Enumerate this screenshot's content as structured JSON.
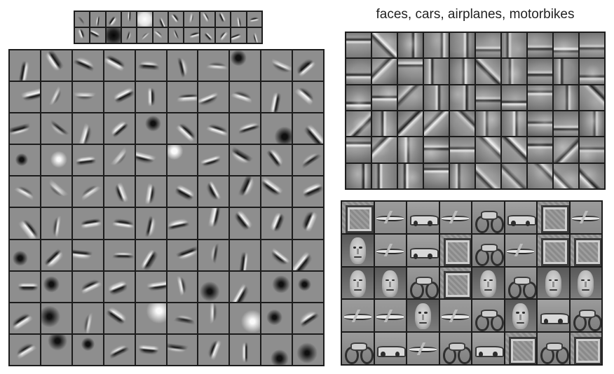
{
  "title": "faces, cars, airplanes, motorbikes",
  "colors": {
    "cell_background": "#8e8e8e",
    "grid_border": "#1c1c1c",
    "title_text": "#222222"
  },
  "panels": [
    {
      "id": "first-layer-bases",
      "rows": 2,
      "cols": 12,
      "content": "oriented edge filters"
    },
    {
      "id": "second-layer-bases",
      "rows": 10,
      "cols": 10,
      "content": "localized oriented edge and blob filters"
    },
    {
      "id": "third-layer-bases",
      "rows": 6,
      "cols": 10,
      "content": "object-part filters"
    },
    {
      "id": "fourth-layer-bases",
      "rows": 5,
      "cols": 8,
      "content": "object filters: faces, cars, airplanes, motorbikes"
    }
  ]
}
